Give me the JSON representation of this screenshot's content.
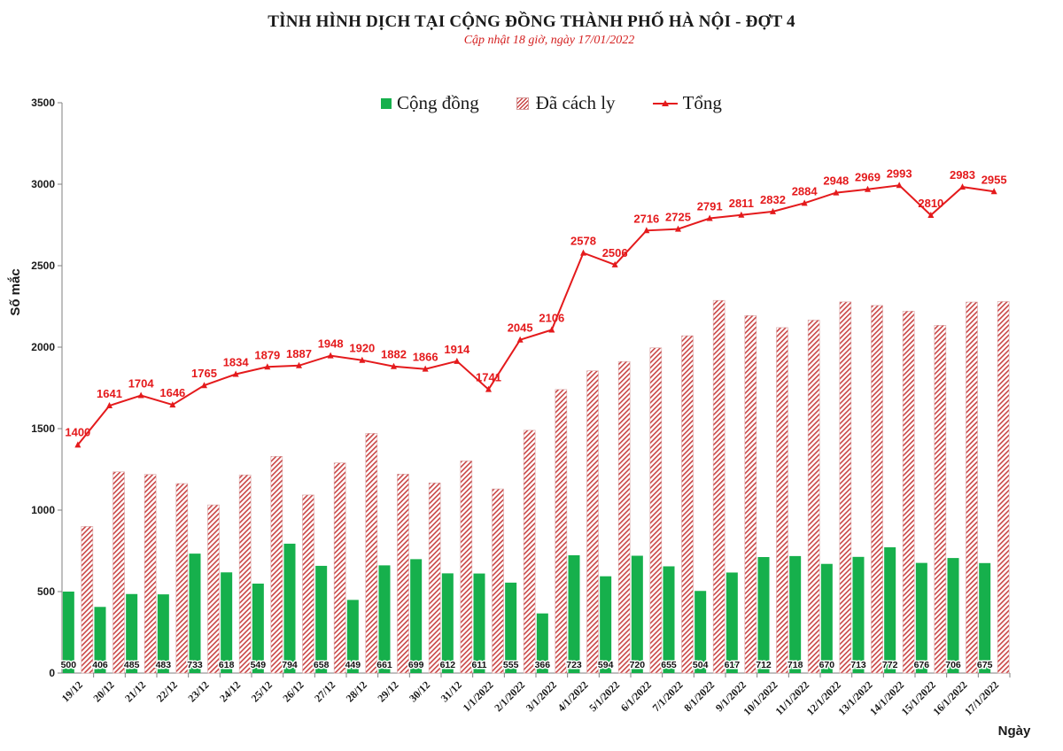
{
  "chart_data": {
    "type": "bar",
    "title": "TÌNH HÌNH DỊCH TẠI CỘNG ĐỒNG THÀNH PHỐ HÀ NỘI - ĐỢT 4",
    "subtitle": "Cập nhật 18 giờ, ngày 17/01/2022",
    "ylabel": "Số mắc",
    "xlabel": "Ngày",
    "ylim": [
      0,
      3500
    ],
    "yticks": [
      "0",
      "500",
      "1000",
      "1500",
      "2000",
      "2500",
      "3000",
      "3500"
    ],
    "legend_position": "top-center",
    "grid": false,
    "categories": [
      "19/12",
      "20/12",
      "21/12",
      "22/12",
      "23/12",
      "24/12",
      "25/12",
      "26/12",
      "27/12",
      "28/12",
      "29/12",
      "30/12",
      "31/12",
      "1/1/2022",
      "2/1/2022",
      "3/1/2022",
      "4/1/2022",
      "5/1/2022",
      "6/1/2022",
      "7/1/2022",
      "8/1/2022",
      "9/1/2022",
      "10/1/2022",
      "11/1/2022",
      "12/1/2022",
      "13/1/2022",
      "14/1/2022",
      "15/1/2022",
      "16/1/2022",
      "17/1/2022"
    ],
    "series": [
      {
        "name": "Cộng đồng",
        "type": "bar",
        "color": "#16b04c",
        "values": [
          500,
          406,
          485,
          483,
          733,
          618,
          549,
          794,
          658,
          449,
          661,
          699,
          612,
          611,
          555,
          366,
          723,
          594,
          720,
          655,
          504,
          617,
          712,
          718,
          670,
          713,
          772,
          676,
          706,
          675
        ]
      },
      {
        "name": "Đã cách ly",
        "type": "bar",
        "color": "#c94545",
        "pattern": "diagonal-hatch",
        "values": [
          900,
          1235,
          1219,
          1163,
          1032,
          1216,
          1330,
          1093,
          1290,
          1471,
          1221,
          1167,
          1302,
          1130,
          1490,
          1740,
          1855,
          1912,
          1996,
          2070,
          2287,
          2194,
          2120,
          2166,
          2278,
          2256,
          2221,
          2134,
          2277,
          2280
        ]
      },
      {
        "name": "Tổng",
        "type": "line",
        "color": "#e41a1c",
        "marker": "triangle",
        "values": [
          1400,
          1641,
          1704,
          1646,
          1765,
          1834,
          1879,
          1887,
          1948,
          1920,
          1882,
          1866,
          1914,
          1741,
          2045,
          2106,
          2578,
          2506,
          2716,
          2725,
          2791,
          2811,
          2832,
          2884,
          2948,
          2969,
          2993,
          2810,
          2983,
          2955
        ]
      }
    ]
  }
}
